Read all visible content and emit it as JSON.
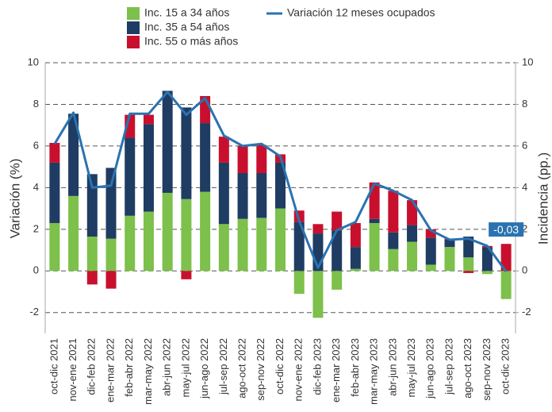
{
  "chart_data": {
    "type": "bar",
    "categories": [
      "oct-dic 2021",
      "nov-ene 2021",
      "dic-feb 2022",
      "ene-mar 2022",
      "feb-abr 2022",
      "mar-may 2022",
      "abr-jun 2022",
      "may-jul 2022",
      "jun-ago 2022",
      "jul-sep 2022",
      "ago-oct 2022",
      "sep-nov 2022",
      "oct-dic 2022",
      "nov-ene 2022",
      "dic-feb 2023",
      "ene-mar 2023",
      "feb-abr 2023",
      "mar-may 2023",
      "abr-jun 2023",
      "may-jul 2023",
      "jun-ago 2023",
      "jul-sep 2023",
      "ago-oct 2023",
      "sep-nov 2023",
      "oct-dic 2023"
    ],
    "stacked": true,
    "series": [
      {
        "name": "Inc. 15 a 34 años",
        "color": "#7dc04b",
        "values": [
          2.3,
          3.6,
          1.65,
          1.55,
          2.65,
          2.85,
          3.75,
          3.45,
          3.8,
          2.25,
          2.5,
          2.55,
          3.0,
          -1.1,
          -2.25,
          -0.9,
          0.1,
          2.3,
          1.05,
          1.4,
          0.3,
          1.15,
          0.65,
          -0.15,
          -1.35
        ]
      },
      {
        "name": "Inc. 35 a 54 años",
        "color": "#1f3c63",
        "values": [
          2.9,
          3.95,
          3.0,
          3.4,
          3.75,
          4.2,
          4.9,
          4.4,
          3.3,
          2.95,
          2.2,
          2.15,
          2.2,
          2.35,
          1.8,
          1.95,
          1.05,
          0.2,
          0.8,
          0.8,
          1.3,
          0.35,
          1.0,
          1.15,
          0
        ]
      },
      {
        "name": "Inc. 55 o más años",
        "color": "#c8102e",
        "values": [
          0.95,
          0,
          -0.65,
          -0.85,
          1.1,
          0.45,
          0,
          -0.4,
          1.3,
          1.25,
          1.3,
          1.35,
          0.4,
          0.55,
          0.45,
          0.9,
          1.15,
          1.75,
          2.0,
          1.2,
          0.4,
          0.05,
          -0.1,
          0.05,
          1.3
        ]
      },
      {
        "name": "Variación 12 meses ocupados",
        "type": "line",
        "color": "#2a73b0",
        "values": [
          6.1,
          7.6,
          4.0,
          4.1,
          7.55,
          7.55,
          8.6,
          7.5,
          8.3,
          6.5,
          6.0,
          6.1,
          5.5,
          2.4,
          0.15,
          1.95,
          2.35,
          4.2,
          3.85,
          3.4,
          1.95,
          1.5,
          1.55,
          1.2,
          -0.03
        ],
        "value_labels": [
          null,
          null,
          null,
          null,
          null,
          null,
          null,
          null,
          null,
          null,
          null,
          null,
          null,
          null,
          null,
          null,
          null,
          null,
          null,
          null,
          null,
          null,
          null,
          null,
          "-0,03"
        ]
      }
    ],
    "ylabel": "Variación (%)",
    "y2label": "Incidencia (pp.)",
    "ylim": [
      -3,
      10
    ],
    "yticks": [
      -2,
      0,
      2,
      4,
      6,
      8,
      10
    ],
    "y2lim": [
      -3,
      10
    ],
    "y2ticks": [
      -2,
      0,
      2,
      4,
      6,
      8,
      10
    ],
    "grid": true
  }
}
